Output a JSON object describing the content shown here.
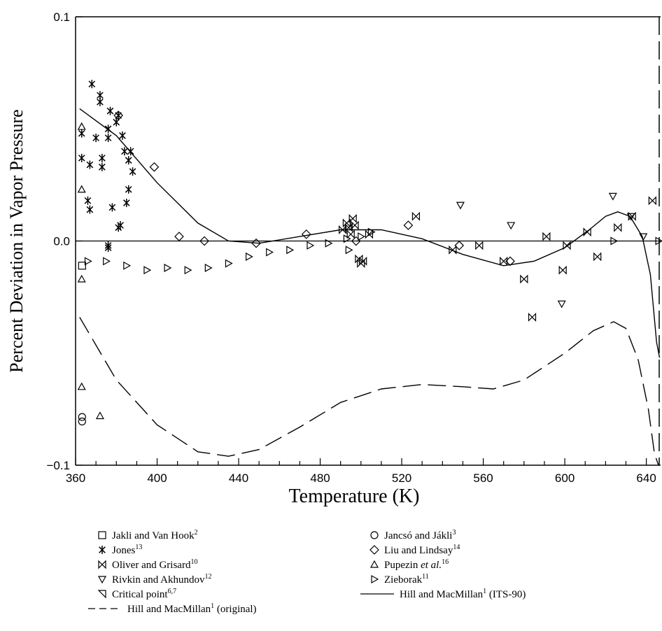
{
  "chart_data": {
    "type": "scatter",
    "title": "",
    "xlabel": "Temperature (K)",
    "ylabel": "Percent Deviation in Vapor Pressure",
    "xlim": [
      360,
      647
    ],
    "ylim": [
      -0.1,
      0.1
    ],
    "x_ticks": [
      360,
      400,
      440,
      480,
      520,
      560,
      600,
      640
    ],
    "x_tick_labels": [
      "360",
      "400",
      "440",
      "480",
      "520",
      "560",
      "600",
      "640"
    ],
    "y_ticks": [
      -0.1,
      0.0,
      0.1
    ],
    "y_tick_labels": [
      "−0.1",
      "0.0",
      "0.1"
    ],
    "grid": false,
    "legend_position": "bottom",
    "series": [
      {
        "name": "Jakli and Van Hook",
        "ref": "2",
        "marker": "square",
        "points": [
          [
            363.2,
            -0.011
          ]
        ]
      },
      {
        "name": "Jancsó and Jákli",
        "ref": "3",
        "marker": "circle",
        "points": [
          [
            363.2,
            -0.0785
          ],
          [
            363.2,
            -0.0805
          ]
        ]
      },
      {
        "name": "Jones",
        "ref": "13",
        "marker": "asterisk",
        "points": [
          [
            363,
            0.048
          ],
          [
            363,
            0.037
          ],
          [
            366,
            0.018
          ],
          [
            367,
            0.014
          ],
          [
            367,
            0.034
          ],
          [
            368,
            0.07
          ],
          [
            370,
            0.046
          ],
          [
            372,
            0.062
          ],
          [
            372,
            0.065
          ],
          [
            373,
            0.037
          ],
          [
            373,
            0.033
          ],
          [
            376,
            0.05
          ],
          [
            376,
            0.046
          ],
          [
            377,
            0.058
          ],
          [
            378,
            0.015
          ],
          [
            380,
            0.053
          ],
          [
            381,
            0.056
          ],
          [
            383,
            0.047
          ],
          [
            384,
            0.04
          ],
          [
            385,
            0.017
          ],
          [
            386,
            0.023
          ],
          [
            386,
            0.036
          ],
          [
            387,
            0.04
          ],
          [
            388,
            0.031
          ],
          [
            381,
            0.006
          ],
          [
            382,
            0.007
          ],
          [
            376,
            -0.002
          ],
          [
            376,
            -0.003
          ]
        ]
      },
      {
        "name": "Liu and Lindsay",
        "ref": "14",
        "marker": "diamond",
        "points": [
          [
            381,
            0.056
          ],
          [
            398.6,
            0.033
          ],
          [
            410.8,
            0.002
          ],
          [
            423.2,
            0.0
          ],
          [
            448.6,
            -0.001
          ],
          [
            473.2,
            0.003
          ],
          [
            497.6,
            0.0
          ],
          [
            523.2,
            0.007
          ],
          [
            548.2,
            -0.002
          ],
          [
            573.2,
            -0.009
          ]
        ]
      },
      {
        "name": "Oliver and Grisard",
        "ref": "10",
        "marker": "bowtie",
        "points": [
          [
            491,
            0.005
          ],
          [
            493,
            0.008
          ],
          [
            494,
            0.006
          ],
          [
            495,
            0.003
          ],
          [
            496,
            0.01
          ],
          [
            497,
            0.007
          ],
          [
            499,
            -0.008
          ],
          [
            500,
            -0.01
          ],
          [
            501,
            -0.009
          ],
          [
            504,
            0.003
          ],
          [
            527,
            0.011
          ],
          [
            545,
            -0.004
          ],
          [
            558,
            -0.002
          ],
          [
            570,
            -0.009
          ],
          [
            580,
            -0.017
          ],
          [
            584,
            -0.034
          ],
          [
            591,
            0.002
          ],
          [
            599,
            -0.013
          ],
          [
            601,
            -0.002
          ],
          [
            611,
            0.004
          ],
          [
            616,
            -0.007
          ],
          [
            626,
            0.006
          ],
          [
            633,
            0.011
          ],
          [
            643,
            0.018
          ]
        ]
      },
      {
        "name": "Pupezin et al.",
        "ref": "16",
        "marker": "triangle-up",
        "points": [
          [
            363,
            0.051
          ],
          [
            363,
            0.023
          ],
          [
            363,
            -0.017
          ],
          [
            363,
            -0.065
          ],
          [
            372,
            -0.078
          ]
        ]
      },
      {
        "name": "Rivkin and Akhundov",
        "ref": "12",
        "marker": "triangle-down",
        "points": [
          [
            548.8,
            0.016
          ],
          [
            573.6,
            0.007
          ],
          [
            598.5,
            -0.028
          ],
          [
            623.6,
            0.02
          ],
          [
            632.5,
            0.011
          ],
          [
            638.5,
            0.002
          ]
        ]
      },
      {
        "name": "Zieborak",
        "ref": "11",
        "marker": "triangle-right",
        "points": [
          [
            366,
            -0.009
          ],
          [
            375,
            -0.009
          ],
          [
            385,
            -0.011
          ],
          [
            395,
            -0.013
          ],
          [
            405,
            -0.012
          ],
          [
            415,
            -0.013
          ],
          [
            425,
            -0.012
          ],
          [
            435,
            -0.01
          ],
          [
            445,
            -0.007
          ],
          [
            455,
            -0.005
          ],
          [
            465,
            -0.004
          ],
          [
            475,
            -0.002
          ],
          [
            484,
            -0.001
          ],
          [
            493,
            0.001
          ],
          [
            494,
            -0.004
          ],
          [
            500,
            0.002
          ],
          [
            505,
            0.004
          ],
          [
            624,
            0.0
          ],
          [
            646,
            0.0
          ]
        ]
      },
      {
        "name": "Critical point",
        "ref": "6,7",
        "marker": "triangle-left",
        "points": []
      },
      {
        "name": "Hill and MacMillan",
        "ref": "1",
        "suffix": " (ITS-90)",
        "marker": "line-solid",
        "points": [
          [
            362,
            0.059
          ],
          [
            380,
            0.047
          ],
          [
            400,
            0.026
          ],
          [
            420,
            0.008
          ],
          [
            435,
            0.0
          ],
          [
            450,
            -0.001
          ],
          [
            470,
            0.002
          ],
          [
            490,
            0.005
          ],
          [
            510,
            0.005
          ],
          [
            530,
            0.001
          ],
          [
            550,
            -0.006
          ],
          [
            570,
            -0.011
          ],
          [
            585,
            -0.009
          ],
          [
            600,
            -0.003
          ],
          [
            612,
            0.005
          ],
          [
            620,
            0.011
          ],
          [
            626,
            0.013
          ],
          [
            632,
            0.011
          ],
          [
            638,
            0.002
          ],
          [
            642,
            -0.015
          ],
          [
            645,
            -0.045
          ],
          [
            646.5,
            -0.052
          ]
        ]
      },
      {
        "name": "Hill and MacMillan",
        "ref": "1",
        "suffix": " (original)",
        "marker": "line-dashed",
        "points": [
          [
            362,
            -0.034
          ],
          [
            380,
            -0.062
          ],
          [
            400,
            -0.082
          ],
          [
            420,
            -0.094
          ],
          [
            435,
            -0.096
          ],
          [
            450,
            -0.093
          ],
          [
            470,
            -0.083
          ],
          [
            490,
            -0.072
          ],
          [
            510,
            -0.066
          ],
          [
            530,
            -0.064
          ],
          [
            550,
            -0.065
          ],
          [
            565,
            -0.066
          ],
          [
            580,
            -0.062
          ],
          [
            600,
            -0.05
          ],
          [
            614,
            -0.04
          ],
          [
            624,
            -0.036
          ],
          [
            630,
            -0.039
          ],
          [
            636,
            -0.053
          ],
          [
            641,
            -0.075
          ],
          [
            644,
            -0.095
          ],
          [
            646,
            -0.1
          ]
        ]
      }
    ],
    "critical_temperature": 647.1,
    "colors": {
      "ink": "#000000",
      "background": "#ffffff"
    }
  }
}
